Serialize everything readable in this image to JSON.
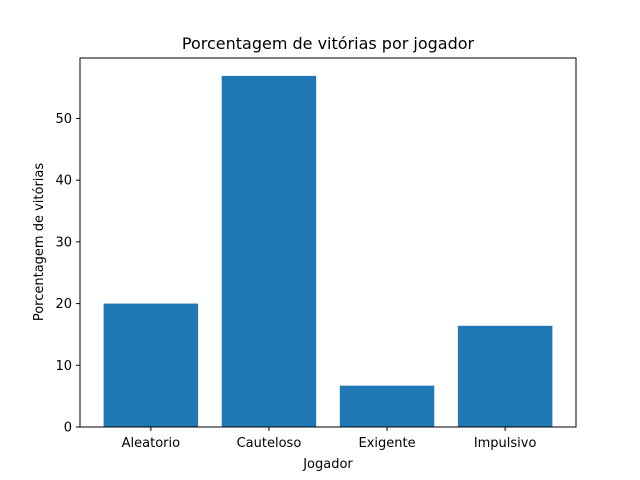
{
  "chart_data": {
    "type": "bar",
    "title": "Porcentagem de vitórias por jogador",
    "xlabel": "Jogador",
    "ylabel": "Porcentagem de vitórias",
    "categories": [
      "Aleatorio",
      "Cauteloso",
      "Exigente",
      "Impulsivo"
    ],
    "values": [
      20.0,
      56.9,
      6.7,
      16.4
    ],
    "ylim": [
      0,
      59.8
    ],
    "yticks": [
      0,
      10,
      20,
      30,
      40,
      50
    ],
    "grid": false,
    "bar_color": "#1f77b4"
  }
}
